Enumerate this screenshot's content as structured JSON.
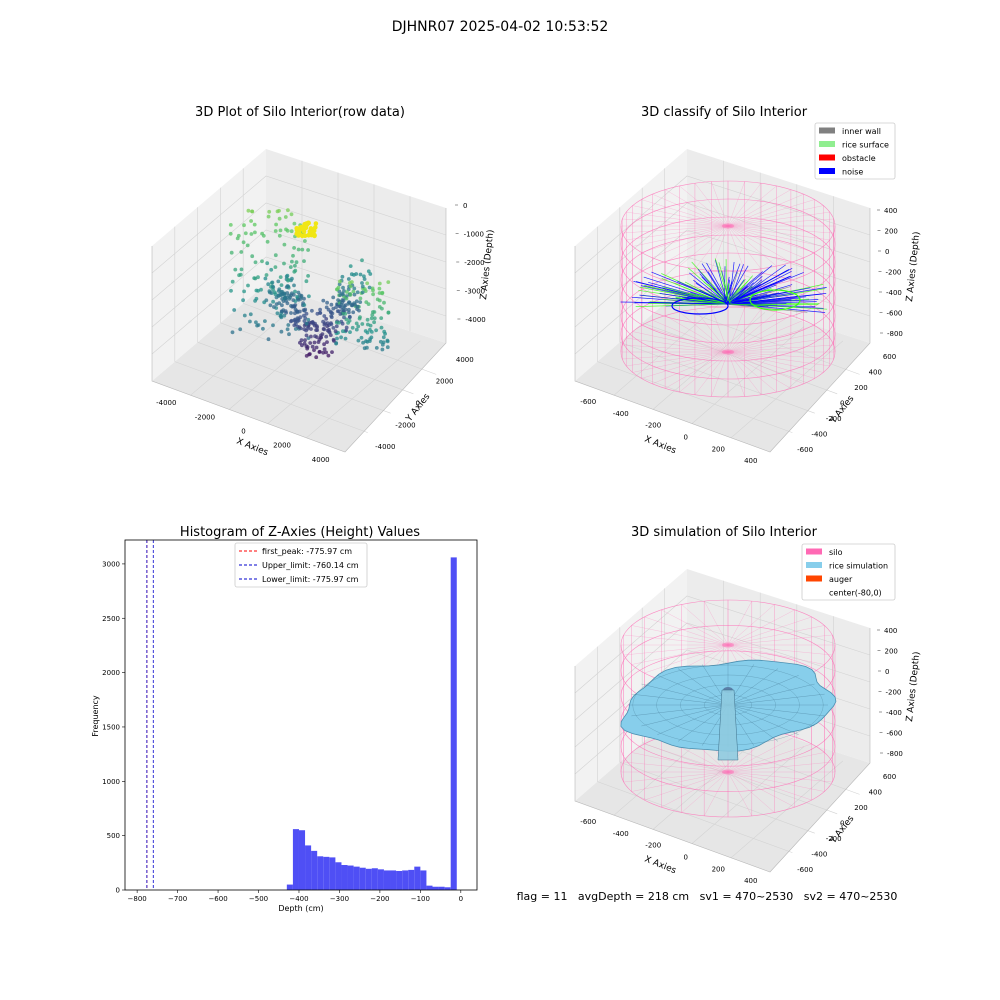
{
  "figure": {
    "title": "DJHNR07 2025-04-02 10:53:52"
  },
  "status_line": "flag = 11   avgDepth = 218 cm   sv1 = 470~2530   sv2 = 470~2530",
  "colors": {
    "hist_bar": "#4f4ff5",
    "first_peak": "#ff0000",
    "limit_lines": "#0000cc",
    "silo_wire": "#ff69b4",
    "inner_wall": "#808080",
    "rice_surface": "#90ee90",
    "obstacle": "#ff0000",
    "noise": "#0000ff",
    "rice_simulation": "#87ceeb",
    "auger": "#ff4500"
  },
  "chart_data": [
    {
      "type": "scatter",
      "title": "3D Plot of Silo Interior(row data)",
      "xlabel": "X Axies",
      "ylabel": "Y Axies",
      "zlabel": "Z Axies (Depth)",
      "x_ticks": [
        "-4000",
        "-2000",
        "0",
        "2000",
        "4000"
      ],
      "y_ticks": [
        "-4000",
        "-2000",
        "0",
        "2000",
        "4000"
      ],
      "z_ticks": [
        "0",
        "-1000",
        "-2000",
        "-3000",
        "-4000"
      ],
      "xlim": [
        -4500,
        4500
      ],
      "ylim": [
        -4500,
        4500
      ],
      "zlim": [
        -4500,
        300
      ],
      "colormap": "viridis (by depth)"
    },
    {
      "type": "scatter",
      "title": "3D classify of Silo Interior",
      "xlabel": "X Axies",
      "ylabel": "Y Axies",
      "zlabel": "Z Axies (Depth)",
      "x_ticks": [
        "-600",
        "-400",
        "-200",
        "0",
        "200",
        "400"
      ],
      "y_ticks": [
        "-600",
        "-400",
        "-200",
        "0",
        "200",
        "400",
        "600"
      ],
      "z_ticks": [
        "400",
        "200",
        "0",
        "-200",
        "-400",
        "-600",
        "-800"
      ],
      "xlim": [
        -700,
        500
      ],
      "ylim": [
        -700,
        700
      ],
      "zlim": [
        -900,
        500
      ],
      "legend": {
        "position": "top-right",
        "entries": [
          {
            "label": "inner wall",
            "color": "#808080"
          },
          {
            "label": "rice surface",
            "color": "#90ee90"
          },
          {
            "label": "obstacle",
            "color": "#ff0000"
          },
          {
            "label": "noise",
            "color": "#0000ff"
          }
        ]
      }
    },
    {
      "type": "bar",
      "title": "Histogram of Z-Axies (Height) Values",
      "xlabel": "Depth (cm)",
      "ylabel": "Frequency",
      "xlim": [
        -830,
        40
      ],
      "ylim": [
        0,
        3220
      ],
      "x_ticks": [
        -800,
        -700,
        -600,
        -500,
        -400,
        -300,
        -200,
        -100,
        0
      ],
      "y_ticks": [
        0,
        500,
        1000,
        1500,
        2000,
        2500,
        3000
      ],
      "bin_edges": [
        -430,
        -415,
        -400,
        -385,
        -370,
        -355,
        -340,
        -325,
        -310,
        -295,
        -280,
        -265,
        -250,
        -235,
        -220,
        -205,
        -190,
        -175,
        -160,
        -145,
        -130,
        -115,
        -100,
        -85,
        -70,
        -55,
        -40,
        -25,
        -10,
        5
      ],
      "values": [
        50,
        560,
        550,
        410,
        360,
        310,
        305,
        300,
        255,
        230,
        225,
        215,
        205,
        195,
        200,
        190,
        180,
        180,
        175,
        180,
        185,
        215,
        180,
        40,
        30,
        30,
        25,
        3060,
        0
      ],
      "vlines": [
        {
          "label": "first_peak: -775.97 cm",
          "x": -775.97,
          "color": "#ff0000",
          "style": "dashed"
        },
        {
          "label": "Upper_limit: -760.14 cm",
          "x": -760.14,
          "color": "#0000cc",
          "style": "dashed"
        },
        {
          "label": "Lower_limit: -775.97 cm",
          "x": -775.97,
          "color": "#0000cc",
          "style": "dashed"
        }
      ],
      "legend": {
        "position": "top-center"
      }
    },
    {
      "type": "surface",
      "title": "3D simulation of Silo Interior",
      "xlabel": "X Axies",
      "ylabel": "Y Axies",
      "zlabel": "Z Axies (Depth)",
      "x_ticks": [
        "-600",
        "-400",
        "-200",
        "0",
        "200",
        "400"
      ],
      "y_ticks": [
        "-600",
        "-400",
        "-200",
        "0",
        "200",
        "400",
        "600"
      ],
      "z_ticks": [
        "400",
        "200",
        "0",
        "-200",
        "-400",
        "-600",
        "-800"
      ],
      "xlim": [
        -700,
        500
      ],
      "ylim": [
        -700,
        700
      ],
      "zlim": [
        -900,
        500
      ],
      "legend": {
        "position": "top-right",
        "entries": [
          {
            "label": "silo",
            "color": "#ff69b4"
          },
          {
            "label": "rice simulation",
            "color": "#87ceeb"
          },
          {
            "label": "auger",
            "color": "#ff4500"
          },
          {
            "label": "center(-80,0)",
            "color": "#ffffff"
          }
        ]
      }
    }
  ]
}
